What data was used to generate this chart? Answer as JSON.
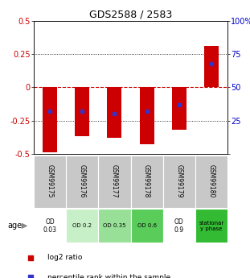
{
  "title": "GDS2588 / 2583",
  "samples": [
    "GSM99175",
    "GSM99176",
    "GSM99177",
    "GSM99178",
    "GSM99179",
    "GSM99180"
  ],
  "log2_ratio_low": [
    -0.49,
    -0.37,
    -0.38,
    -0.43,
    -0.32,
    0.0
  ],
  "log2_ratio_high": [
    0.0,
    0.0,
    0.0,
    0.0,
    0.0,
    0.31
  ],
  "percentile_rank_pct": [
    32,
    32,
    30,
    32,
    37,
    68
  ],
  "ylim": [
    -0.5,
    0.5
  ],
  "yticks_left": [
    -0.5,
    -0.25,
    0,
    0.25,
    0.5
  ],
  "yticks_right": [
    0,
    25,
    50,
    75,
    100
  ],
  "bar_color": "#cc0000",
  "dot_color": "#3333cc",
  "zero_line_color": "#cc0000",
  "age_labels": [
    "OD\n0.03",
    "OD 0.2",
    "OD 0.35",
    "OD 0.6",
    "OD\n0.9",
    "stationar\ny phase"
  ],
  "age_bg_colors": [
    "#ffffff",
    "#c8f0c8",
    "#98e098",
    "#5acc5a",
    "#ffffff",
    "#33bb33"
  ],
  "sample_bg_color": "#c8c8c8",
  "legend_red_label": "log2 ratio",
  "legend_blue_label": "percentile rank within the sample"
}
